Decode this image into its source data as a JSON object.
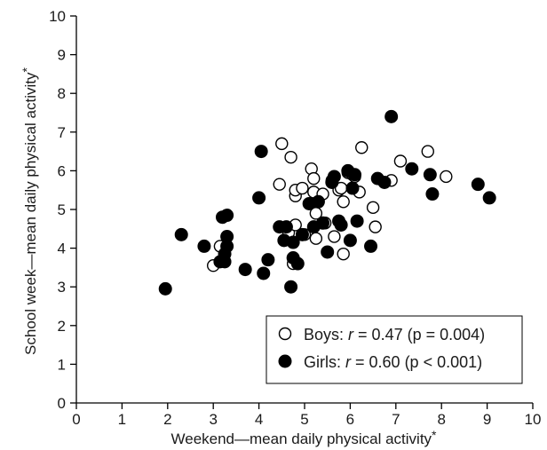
{
  "chart_data": {
    "type": "scatter",
    "xlabel": "Weekend—mean daily physical activity",
    "ylabel": "School week—mean daily physical activity",
    "label_marker": "*",
    "xlim": [
      0,
      10
    ],
    "ylim": [
      0,
      10
    ],
    "x_ticks": [
      "0",
      "1",
      "2",
      "3",
      "4",
      "5",
      "6",
      "7",
      "8",
      "9",
      "10"
    ],
    "y_ticks": [
      "0",
      "1",
      "2",
      "3",
      "4",
      "5",
      "6",
      "7",
      "8",
      "9",
      "10"
    ],
    "grid": false,
    "legend_placement": "bottom-right",
    "series": [
      {
        "name": "Boys",
        "stat_label": "r",
        "stat_text": " = 0.47 (p = 0.004)",
        "marker": "open-circle",
        "color": "#000000",
        "points": [
          [
            3.0,
            3.55
          ],
          [
            3.15,
            4.05
          ],
          [
            3.25,
            3.85
          ],
          [
            4.5,
            6.7
          ],
          [
            4.45,
            5.65
          ],
          [
            4.7,
            6.35
          ],
          [
            4.8,
            5.35
          ],
          [
            4.8,
            5.5
          ],
          [
            4.95,
            5.55
          ],
          [
            5.15,
            6.05
          ],
          [
            5.2,
            5.8
          ],
          [
            5.2,
            5.45
          ],
          [
            5.25,
            4.9
          ],
          [
            5.25,
            4.25
          ],
          [
            5.4,
            5.4
          ],
          [
            5.45,
            4.65
          ],
          [
            5.6,
            5.75
          ],
          [
            5.65,
            4.3
          ],
          [
            5.75,
            5.5
          ],
          [
            5.8,
            5.55
          ],
          [
            5.85,
            5.2
          ],
          [
            5.85,
            3.85
          ],
          [
            5.95,
            5.95
          ],
          [
            6.05,
            5.9
          ],
          [
            6.1,
            5.85
          ],
          [
            6.2,
            5.45
          ],
          [
            6.25,
            6.6
          ],
          [
            6.5,
            5.05
          ],
          [
            6.55,
            4.55
          ],
          [
            6.9,
            5.75
          ],
          [
            7.1,
            6.25
          ],
          [
            7.7,
            6.5
          ],
          [
            8.1,
            5.85
          ],
          [
            4.55,
            4.2
          ],
          [
            4.65,
            4.4
          ],
          [
            4.75,
            3.6
          ],
          [
            4.8,
            4.6
          ],
          [
            5.0,
            4.35
          ]
        ]
      },
      {
        "name": "Girls",
        "stat_label": "r",
        "stat_text": " = 0.60 (p < 0.001)",
        "marker": "filled-circle",
        "color": "#000000",
        "points": [
          [
            1.95,
            2.95
          ],
          [
            2.3,
            4.35
          ],
          [
            2.8,
            4.05
          ],
          [
            3.15,
            3.65
          ],
          [
            3.2,
            4.8
          ],
          [
            3.25,
            3.65
          ],
          [
            3.25,
            3.85
          ],
          [
            3.3,
            4.85
          ],
          [
            3.3,
            4.3
          ],
          [
            3.3,
            4.05
          ],
          [
            3.7,
            3.45
          ],
          [
            4.0,
            5.3
          ],
          [
            4.05,
            6.5
          ],
          [
            4.1,
            3.35
          ],
          [
            4.2,
            3.7
          ],
          [
            4.45,
            4.55
          ],
          [
            4.55,
            4.2
          ],
          [
            4.6,
            4.55
          ],
          [
            4.7,
            3.0
          ],
          [
            4.75,
            3.75
          ],
          [
            4.75,
            4.15
          ],
          [
            4.85,
            3.6
          ],
          [
            4.95,
            4.35
          ],
          [
            5.1,
            5.15
          ],
          [
            5.2,
            4.55
          ],
          [
            5.3,
            5.2
          ],
          [
            5.4,
            4.65
          ],
          [
            5.5,
            3.9
          ],
          [
            5.6,
            5.7
          ],
          [
            5.65,
            5.85
          ],
          [
            5.75,
            4.7
          ],
          [
            5.8,
            4.6
          ],
          [
            5.95,
            6.0
          ],
          [
            6.0,
            4.2
          ],
          [
            6.05,
            5.55
          ],
          [
            6.1,
            5.9
          ],
          [
            6.15,
            4.7
          ],
          [
            6.45,
            4.05
          ],
          [
            6.6,
            5.8
          ],
          [
            6.75,
            5.7
          ],
          [
            6.9,
            7.4
          ],
          [
            7.35,
            6.05
          ],
          [
            7.75,
            5.9
          ],
          [
            7.8,
            5.4
          ],
          [
            8.8,
            5.65
          ],
          [
            9.05,
            5.3
          ]
        ]
      }
    ]
  }
}
